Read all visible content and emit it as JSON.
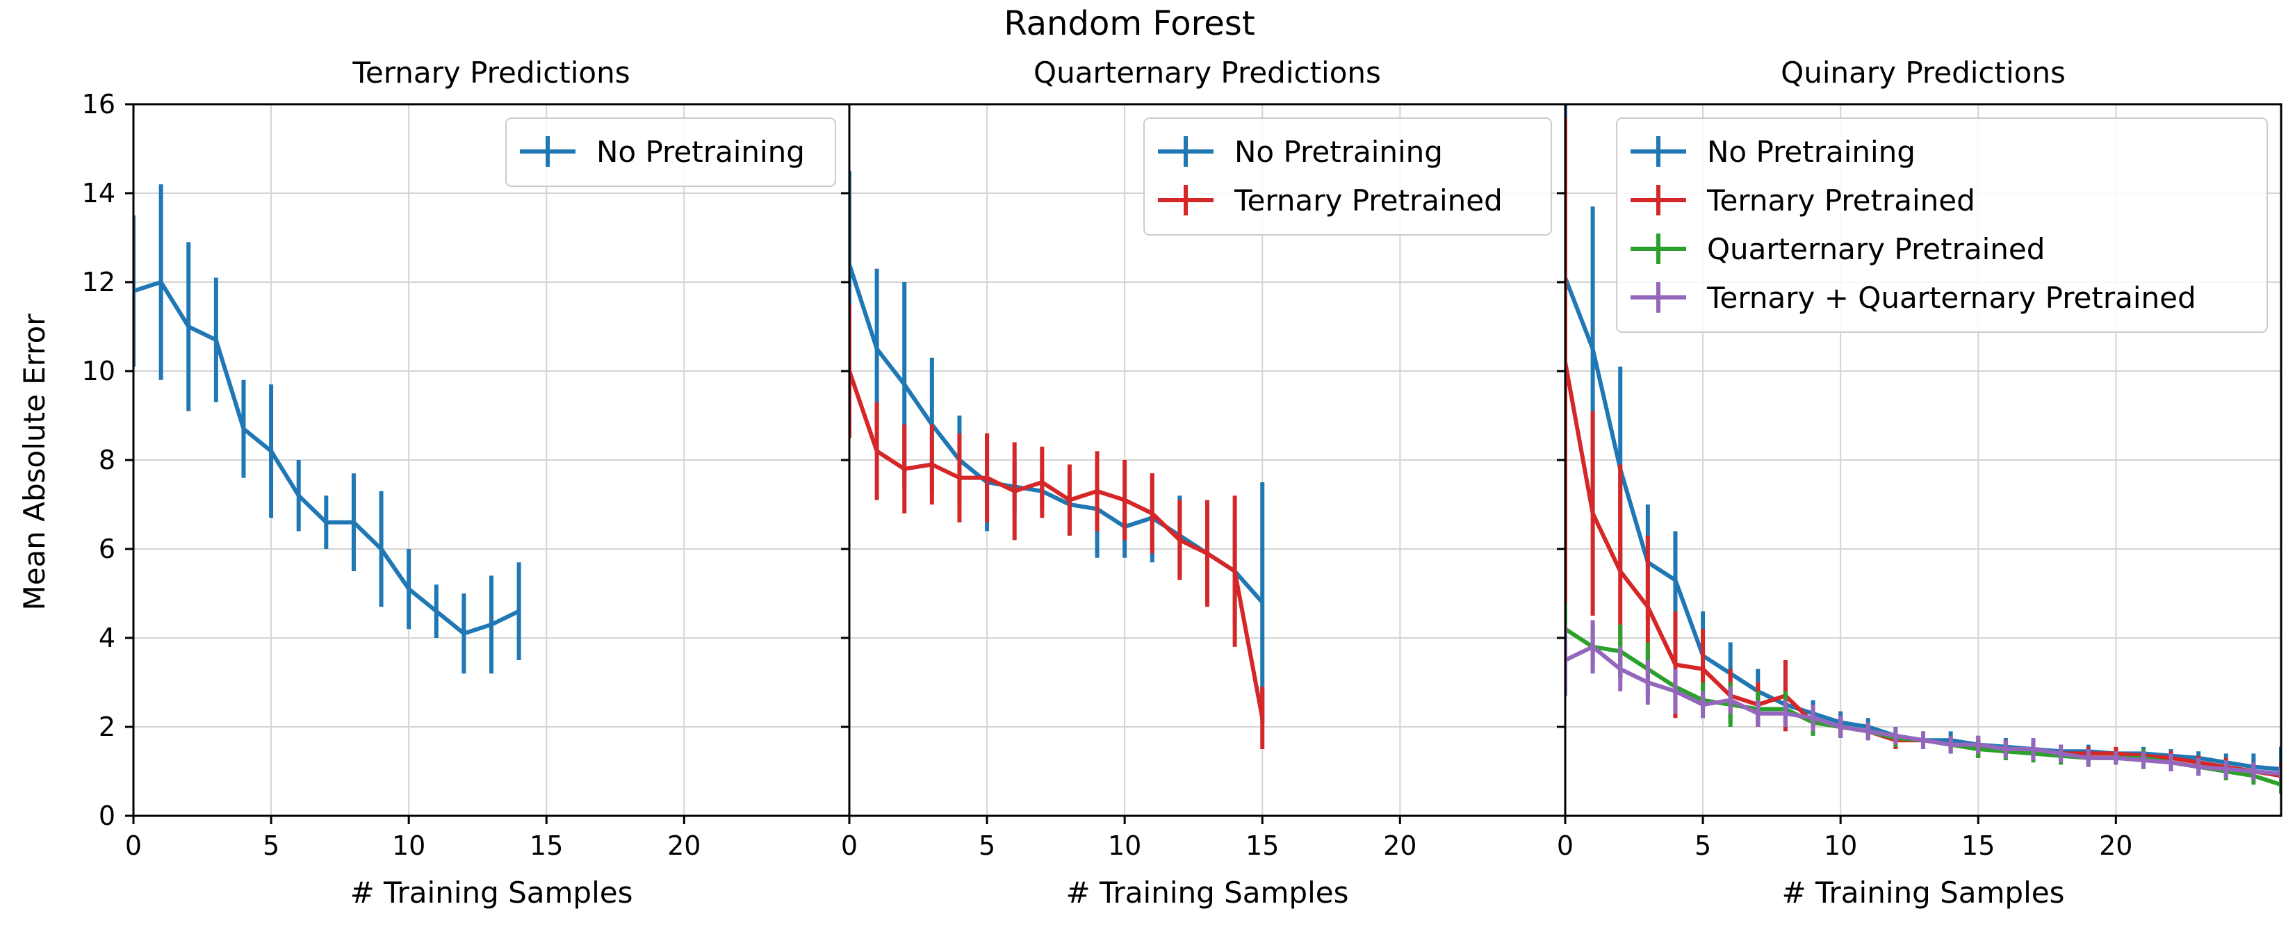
{
  "figure": {
    "suptitle": "Random Forest",
    "ylabel": "Mean Absolute Error",
    "xlabel": "# Training Samples"
  },
  "colors": {
    "No Pretraining": "#1f77b4",
    "Ternary Pretrained": "#d62728",
    "Quarternary Pretrained": "#2ca02c",
    "Ternary + Quarternary Pretrained": "#9467bd"
  },
  "chart_data": [
    {
      "type": "line",
      "error_bars": true,
      "title": "Ternary Predictions",
      "xlabel": "# Training Samples",
      "ylabel": "Mean Absolute Error",
      "xlim": [
        0,
        26
      ],
      "ylim": [
        0,
        16
      ],
      "xticks": [
        "0",
        "5",
        "10",
        "15",
        "20"
      ],
      "yticks": [
        "0",
        "2",
        "4",
        "6",
        "8",
        "10",
        "12",
        "14",
        "16"
      ],
      "grid": true,
      "legend": "top-right",
      "series": [
        {
          "name": "No Pretraining",
          "x": [
            0,
            1,
            2,
            3,
            4,
            5,
            6,
            7,
            8,
            9,
            10,
            11,
            12,
            13,
            14
          ],
          "y": [
            11.8,
            12.0,
            11.0,
            10.7,
            8.7,
            8.2,
            7.2,
            6.6,
            6.6,
            6.0,
            5.1,
            4.6,
            4.1,
            4.3,
            4.6
          ],
          "err": [
            1.7,
            2.2,
            1.9,
            1.4,
            1.1,
            1.5,
            0.8,
            0.6,
            1.1,
            1.3,
            0.9,
            0.6,
            0.9,
            1.1,
            1.1
          ]
        }
      ]
    },
    {
      "type": "line",
      "error_bars": true,
      "title": "Quarternary Predictions",
      "xlabel": "# Training Samples",
      "xlim": [
        0,
        26
      ],
      "ylim": [
        0,
        16
      ],
      "xticks": [
        "0",
        "5",
        "10",
        "15",
        "20"
      ],
      "grid": true,
      "legend": "top-right",
      "series": [
        {
          "name": "No Pretraining",
          "x": [
            0,
            1,
            2,
            3,
            4,
            5,
            6,
            7,
            8,
            9,
            10,
            11,
            12,
            13,
            14,
            15
          ],
          "y": [
            12.4,
            10.5,
            9.7,
            8.8,
            8.0,
            7.5,
            7.4,
            7.3,
            7.0,
            6.9,
            6.5,
            6.7,
            6.3,
            5.9,
            5.5,
            4.8
          ],
          "err": [
            2.1,
            1.8,
            2.3,
            1.5,
            1.0,
            1.1,
            0.6,
            0.4,
            0.7,
            1.1,
            0.7,
            1.0,
            0.9,
            0.9,
            1.2,
            2.7
          ]
        },
        {
          "name": "Ternary Pretrained",
          "x": [
            0,
            1,
            2,
            3,
            4,
            5,
            6,
            7,
            8,
            9,
            10,
            11,
            12,
            13,
            14,
            15
          ],
          "y": [
            10.0,
            8.2,
            7.8,
            7.9,
            7.6,
            7.6,
            7.3,
            7.5,
            7.1,
            7.3,
            7.1,
            6.8,
            6.2,
            5.9,
            5.5,
            2.2
          ],
          "err": [
            1.5,
            1.1,
            1.0,
            0.9,
            1.0,
            1.0,
            1.1,
            0.8,
            0.8,
            0.9,
            0.9,
            0.9,
            0.9,
            1.2,
            1.7,
            0.7
          ]
        }
      ]
    },
    {
      "type": "line",
      "error_bars": true,
      "title": "Quinary Predictions",
      "xlabel": "# Training Samples",
      "xlim": [
        0,
        26
      ],
      "ylim": [
        0,
        16
      ],
      "xticks": [
        "0",
        "5",
        "10",
        "15",
        "20"
      ],
      "grid": true,
      "legend": "top-right",
      "series": [
        {
          "name": "No Pretraining",
          "x": [
            0,
            1,
            2,
            3,
            4,
            5,
            6,
            7,
            8,
            9,
            10,
            11,
            12,
            13,
            14,
            15,
            16,
            17,
            18,
            19,
            20,
            21,
            22,
            23,
            24,
            25,
            26
          ],
          "y": [
            12.1,
            10.5,
            7.8,
            5.7,
            5.3,
            3.6,
            3.2,
            2.8,
            2.5,
            2.3,
            2.1,
            2.0,
            1.8,
            1.7,
            1.7,
            1.6,
            1.55,
            1.5,
            1.45,
            1.45,
            1.4,
            1.4,
            1.35,
            1.3,
            1.2,
            1.1,
            1.05
          ],
          "err": [
            4.1,
            3.2,
            2.3,
            1.3,
            1.1,
            1.0,
            0.7,
            0.5,
            0.4,
            0.3,
            0.25,
            0.2,
            0.2,
            0.2,
            0.2,
            0.2,
            0.2,
            0.2,
            0.15,
            0.15,
            0.15,
            0.15,
            0.15,
            0.15,
            0.2,
            0.3,
            0.5
          ]
        },
        {
          "name": "Ternary Pretrained",
          "x": [
            0,
            1,
            2,
            3,
            4,
            5,
            6,
            7,
            8,
            9,
            10,
            11,
            12,
            13,
            14,
            15,
            16,
            17,
            18,
            19,
            20,
            21,
            22,
            23,
            24,
            25,
            26
          ],
          "y": [
            10.2,
            6.8,
            5.5,
            4.7,
            3.4,
            3.3,
            2.7,
            2.5,
            2.7,
            2.1,
            2.0,
            1.9,
            1.7,
            1.7,
            1.6,
            1.5,
            1.5,
            1.45,
            1.4,
            1.4,
            1.4,
            1.35,
            1.3,
            1.2,
            1.1,
            1.0,
            0.9
          ],
          "err": [
            5.5,
            2.3,
            2.4,
            1.6,
            1.2,
            0.9,
            0.6,
            0.5,
            0.8,
            0.3,
            0.25,
            0.2,
            0.2,
            0.2,
            0.2,
            0.2,
            0.2,
            0.2,
            0.2,
            0.15,
            0.15,
            0.15,
            0.15,
            0.15,
            0.2,
            0.2,
            0.3
          ]
        },
        {
          "name": "Quarternary Pretrained",
          "x": [
            0,
            1,
            2,
            3,
            4,
            5,
            6,
            7,
            8,
            9,
            10,
            11,
            12,
            13,
            14,
            15,
            16,
            17,
            18,
            19,
            20,
            21,
            22,
            23,
            24,
            25,
            26
          ],
          "y": [
            4.2,
            3.8,
            3.7,
            3.3,
            2.9,
            2.6,
            2.5,
            2.4,
            2.4,
            2.1,
            2.0,
            1.9,
            1.75,
            1.7,
            1.6,
            1.5,
            1.45,
            1.4,
            1.35,
            1.3,
            1.3,
            1.3,
            1.2,
            1.1,
            1.0,
            0.9,
            0.7
          ],
          "err": [
            0.6,
            0.5,
            0.6,
            0.6,
            0.4,
            0.4,
            0.5,
            0.4,
            0.4,
            0.3,
            0.25,
            0.2,
            0.2,
            0.2,
            0.2,
            0.2,
            0.2,
            0.2,
            0.2,
            0.2,
            0.15,
            0.2,
            0.2,
            0.2,
            0.2,
            0.2,
            0.2
          ]
        },
        {
          "name": "Ternary + Quarternary Pretrained",
          "x": [
            0,
            1,
            2,
            3,
            4,
            5,
            6,
            7,
            8,
            9,
            10,
            11,
            12,
            13,
            14,
            15,
            16,
            17,
            18,
            19,
            20,
            21,
            22,
            23,
            24,
            25,
            26
          ],
          "y": [
            3.5,
            3.8,
            3.3,
            3.0,
            2.8,
            2.5,
            2.6,
            2.3,
            2.3,
            2.2,
            2.0,
            1.9,
            1.8,
            1.7,
            1.6,
            1.6,
            1.5,
            1.5,
            1.4,
            1.3,
            1.3,
            1.25,
            1.2,
            1.1,
            1.05,
            1.0,
            0.95
          ],
          "err": [
            0.8,
            0.6,
            0.5,
            0.5,
            0.5,
            0.3,
            0.3,
            0.3,
            0.3,
            0.3,
            0.25,
            0.2,
            0.2,
            0.2,
            0.2,
            0.2,
            0.2,
            0.25,
            0.2,
            0.2,
            0.15,
            0.2,
            0.2,
            0.2,
            0.2,
            0.2,
            0.15
          ]
        }
      ]
    }
  ]
}
